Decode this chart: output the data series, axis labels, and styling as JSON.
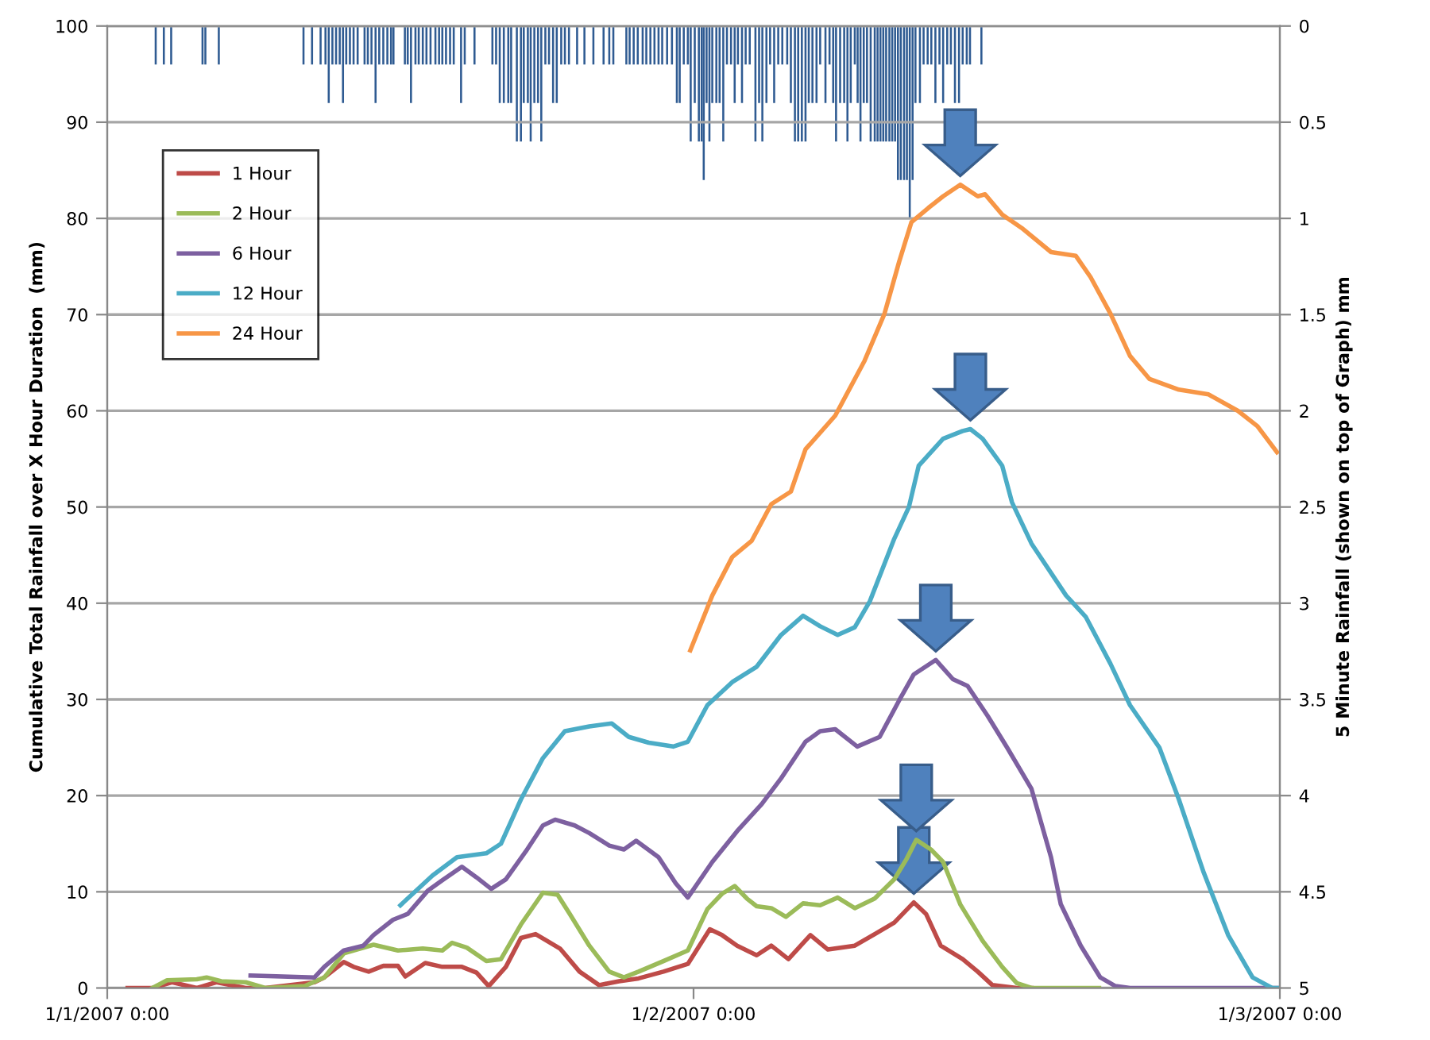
{
  "chart_data": {
    "type": "line",
    "ylabel": "Cumulative Total Rainfall over X Hour Duration  (mm)",
    "y2label": "5 Minute Rainfall (shown on top of Graph) mm",
    "xlim": [
      "2007-01-01T00:00",
      "2007-01-03T00:00"
    ],
    "xticks": [
      {
        "value": "2007-01-01T00:00",
        "label": "1/1/2007 0:00"
      },
      {
        "value": "2007-01-02T00:00",
        "label": "1/2/2007 0:00"
      },
      {
        "value": "2007-01-03T00:00",
        "label": "1/3/2007 0:00"
      }
    ],
    "ylim": [
      0,
      100
    ],
    "yticks": [
      0,
      10,
      20,
      30,
      40,
      50,
      60,
      70,
      80,
      90,
      100
    ],
    "y2lim": [
      5,
      0
    ],
    "y2ticks": [
      0,
      0.5,
      1,
      1.5,
      2,
      2.5,
      3,
      3.5,
      4,
      4.5,
      5
    ],
    "grid": "y",
    "legend": "top left",
    "marker": "none",
    "line_style": "solid",
    "series": [
      {
        "type": "bar",
        "axis": "y2",
        "color": "#2f5b92",
        "x": [
          "2007-01-01T01:59",
          "2007-01-01T02:19",
          "2007-01-01T02:37",
          "2007-01-01T03:54",
          "2007-01-01T04:01",
          "2007-01-01T04:34",
          "2007-01-01T08:02",
          "2007-01-01T08:23",
          "2007-01-01T08:44",
          "2007-01-01T08:56",
          "2007-01-01T09:04",
          "2007-01-01T09:13",
          "2007-01-01T09:22",
          "2007-01-01T09:31",
          "2007-01-01T09:39",
          "2007-01-01T09:47",
          "2007-01-01T09:56",
          "2007-01-01T10:05",
          "2007-01-01T10:15",
          "2007-01-01T10:32",
          "2007-01-01T10:40",
          "2007-01-01T10:49",
          "2007-01-01T10:59",
          "2007-01-01T11:08",
          "2007-01-01T11:18",
          "2007-01-01T11:28",
          "2007-01-01T11:37",
          "2007-01-01T11:43",
          "2007-01-01T12:11",
          "2007-01-01T12:18",
          "2007-01-01T12:26",
          "2007-01-01T12:37",
          "2007-01-01T12:45",
          "2007-01-01T12:55",
          "2007-01-01T13:04",
          "2007-01-01T13:14",
          "2007-01-01T13:26",
          "2007-01-01T13:35",
          "2007-01-01T13:43",
          "2007-01-01T13:52",
          "2007-01-01T14:02",
          "2007-01-01T14:11",
          "2007-01-01T14:29",
          "2007-01-01T14:38",
          "2007-01-01T15:02",
          "2007-01-01T15:46",
          "2007-01-01T15:55",
          "2007-01-01T16:04",
          "2007-01-01T16:14",
          "2007-01-01T16:25",
          "2007-01-01T16:32",
          "2007-01-01T16:46",
          "2007-01-01T16:56",
          "2007-01-01T17:03",
          "2007-01-01T17:13",
          "2007-01-01T17:20",
          "2007-01-01T17:29",
          "2007-01-01T17:38",
          "2007-01-01T17:46",
          "2007-01-01T17:56",
          "2007-01-01T18:05",
          "2007-01-01T18:15",
          "2007-01-01T18:24",
          "2007-01-01T18:35",
          "2007-01-01T18:44",
          "2007-01-01T18:54",
          "2007-01-01T19:14",
          "2007-01-01T19:32",
          "2007-01-01T19:54",
          "2007-01-01T20:19",
          "2007-01-01T20:33",
          "2007-01-01T20:43",
          "2007-01-01T21:15",
          "2007-01-01T21:23",
          "2007-01-01T21:33",
          "2007-01-01T21:43",
          "2007-01-01T21:55",
          "2007-01-01T22:04",
          "2007-01-01T22:14",
          "2007-01-01T22:24",
          "2007-01-01T22:34",
          "2007-01-01T22:43",
          "2007-01-01T22:55",
          "2007-01-01T23:07",
          "2007-01-01T23:19",
          "2007-01-01T23:26",
          "2007-01-01T23:36",
          "2007-01-01T23:46",
          "2007-01-01T23:53",
          "2007-01-02T00:03",
          "2007-01-02T00:13",
          "2007-01-02T00:20",
          "2007-01-02T00:25",
          "2007-01-02T00:32",
          "2007-01-02T00:39",
          "2007-01-02T00:46",
          "2007-01-02T00:56",
          "2007-01-02T01:04",
          "2007-01-02T01:13",
          "2007-01-02T01:22",
          "2007-01-02T01:32",
          "2007-01-02T01:41",
          "2007-01-02T01:49",
          "2007-01-02T01:59",
          "2007-01-02T02:08",
          "2007-01-02T02:18",
          "2007-01-02T02:32",
          "2007-01-02T02:41",
          "2007-01-02T02:49",
          "2007-01-02T02:59",
          "2007-01-02T03:08",
          "2007-01-02T03:18",
          "2007-01-02T03:28",
          "2007-01-02T03:38",
          "2007-01-02T03:50",
          "2007-01-02T03:59",
          "2007-01-02T04:09",
          "2007-01-02T04:17",
          "2007-01-02T04:26",
          "2007-01-02T04:35",
          "2007-01-02T04:43",
          "2007-01-02T04:52",
          "2007-01-02T05:02",
          "2007-01-02T05:11",
          "2007-01-02T05:24",
          "2007-01-02T05:34",
          "2007-01-02T05:43",
          "2007-01-02T05:50",
          "2007-01-02T06:00",
          "2007-01-02T06:10",
          "2007-01-02T06:18",
          "2007-01-02T06:26",
          "2007-01-02T06:36",
          "2007-01-02T06:43",
          "2007-01-02T06:50",
          "2007-01-02T06:58",
          "2007-01-02T07:06",
          "2007-01-02T07:15",
          "2007-01-02T07:25",
          "2007-01-02T07:32",
          "2007-01-02T07:39",
          "2007-01-02T07:46",
          "2007-01-02T07:53",
          "2007-01-02T08:01",
          "2007-01-02T08:08",
          "2007-01-02T08:15",
          "2007-01-02T08:22",
          "2007-01-02T08:29",
          "2007-01-02T08:37",
          "2007-01-02T08:44",
          "2007-01-02T08:51",
          "2007-01-02T08:58",
          "2007-01-02T09:05",
          "2007-01-02T09:16",
          "2007-01-02T09:25",
          "2007-01-02T09:35",
          "2007-01-02T09:44",
          "2007-01-02T09:54",
          "2007-01-02T10:04",
          "2007-01-02T10:13",
          "2007-01-02T10:23",
          "2007-01-02T10:32",
          "2007-01-02T10:42",
          "2007-01-02T10:52",
          "2007-01-02T11:01",
          "2007-01-02T11:11",
          "2007-01-02T11:19",
          "2007-01-02T11:47"
        ],
        "values": [
          0.2,
          0.2,
          0.2,
          0.2,
          0.2,
          0.2,
          0.2,
          0.2,
          0.2,
          0.2,
          0.4,
          0.2,
          0.2,
          0.2,
          0.4,
          0.2,
          0.2,
          0.2,
          0.2,
          0.2,
          0.2,
          0.2,
          0.4,
          0.2,
          0.2,
          0.2,
          0.2,
          0.2,
          0.2,
          0.2,
          0.4,
          0.2,
          0.2,
          0.2,
          0.2,
          0.2,
          0.2,
          0.2,
          0.2,
          0.2,
          0.2,
          0.2,
          0.4,
          0.2,
          0.2,
          0.2,
          0.2,
          0.4,
          0.4,
          0.4,
          0.4,
          0.6,
          0.6,
          0.4,
          0.4,
          0.6,
          0.4,
          0.4,
          0.6,
          0.2,
          0.2,
          0.4,
          0.4,
          0.2,
          0.2,
          0.2,
          0.2,
          0.2,
          0.2,
          0.2,
          0.2,
          0.2,
          0.2,
          0.2,
          0.2,
          0.2,
          0.2,
          0.2,
          0.2,
          0.2,
          0.2,
          0.2,
          0.2,
          0.2,
          0.4,
          0.4,
          0.2,
          0.2,
          0.6,
          0.4,
          0.6,
          0.6,
          0.8,
          0.4,
          0.6,
          0.4,
          0.4,
          0.4,
          0.6,
          0.2,
          0.2,
          0.4,
          0.2,
          0.4,
          0.2,
          0.2,
          0.6,
          0.4,
          0.6,
          0.4,
          0.2,
          0.4,
          0.2,
          0.2,
          0.2,
          0.4,
          0.6,
          0.6,
          0.6,
          0.6,
          0.4,
          0.4,
          0.4,
          0.2,
          0.4,
          0.2,
          0.4,
          0.6,
          0.4,
          0.4,
          0.6,
          0.4,
          0.2,
          0.4,
          0.6,
          0.4,
          0.4,
          0.6,
          0.6,
          0.6,
          0.6,
          0.6,
          0.6,
          0.6,
          0.6,
          0.6,
          0.8,
          0.8,
          0.8,
          0.8,
          1.0,
          0.8,
          0.4,
          0.4,
          0.2,
          0.2,
          0.2,
          0.4,
          0.2,
          0.4,
          0.2,
          0.2,
          0.4,
          0.4,
          0.2,
          0.2,
          0.2,
          0.2
        ]
      },
      {
        "name": "1 Hour",
        "color": "#be4b48",
        "x": [
          "2007-01-01T00:50",
          "2007-01-01T01:51",
          "2007-01-01T02:39",
          "2007-01-01T03:40",
          "2007-01-01T04:28",
          "2007-01-01T05:40",
          "2007-01-01T06:28",
          "2007-01-01T08:29",
          "2007-01-01T08:53",
          "2007-01-01T09:41",
          "2007-01-01T10:05",
          "2007-01-01T10:42",
          "2007-01-01T11:18",
          "2007-01-01T11:54",
          "2007-01-01T12:12",
          "2007-01-01T13:01",
          "2007-01-01T13:43",
          "2007-01-01T14:31",
          "2007-01-01T15:07",
          "2007-01-01T15:37",
          "2007-01-01T16:19",
          "2007-01-01T16:56",
          "2007-01-01T17:32",
          "2007-01-01T17:56",
          "2007-01-01T18:32",
          "2007-01-01T19:20",
          "2007-01-01T20:08",
          "2007-01-01T20:57",
          "2007-01-01T21:45",
          "2007-01-01T22:46",
          "2007-01-01T23:46",
          "2007-01-02T00:40",
          "2007-01-02T01:10",
          "2007-01-02T01:47",
          "2007-01-02T02:35",
          "2007-01-02T03:11",
          "2007-01-02T03:53",
          "2007-01-02T04:47",
          "2007-01-02T05:30",
          "2007-01-02T06:36",
          "2007-01-02T07:25",
          "2007-01-02T08:13",
          "2007-01-02T09:01",
          "2007-01-02T09:31",
          "2007-01-02T10:07",
          "2007-01-02T11:01",
          "2007-01-02T11:38",
          "2007-01-02T12:14",
          "2007-01-02T13:14",
          "2007-01-02T13:50"
        ],
        "values": [
          0,
          0,
          0.6,
          0,
          0.6,
          0,
          0,
          0.6,
          1.1,
          2.7,
          2.2,
          1.7,
          2.3,
          2.3,
          1.2,
          2.6,
          2.2,
          2.2,
          1.6,
          0.2,
          2.2,
          5.2,
          5.6,
          5.0,
          4.1,
          1.7,
          0.3,
          0.7,
          1.0,
          1.7,
          2.5,
          6.1,
          5.5,
          4.4,
          3.4,
          4.4,
          3.0,
          5.5,
          4.0,
          4.4,
          5.6,
          6.8,
          8.9,
          7.7,
          4.4,
          3.0,
          1.7,
          0.3,
          0,
          0
        ]
      },
      {
        "name": "2 Hour",
        "color": "#9bbb59",
        "x": [
          "2007-01-01T01:51",
          "2007-01-01T02:27",
          "2007-01-01T03:40",
          "2007-01-01T04:04",
          "2007-01-01T04:40",
          "2007-01-01T05:40",
          "2007-01-01T06:28",
          "2007-01-01T08:05",
          "2007-01-01T08:53",
          "2007-01-01T09:41",
          "2007-01-01T10:54",
          "2007-01-01T11:54",
          "2007-01-01T12:55",
          "2007-01-01T13:43",
          "2007-01-01T14:07",
          "2007-01-01T14:43",
          "2007-01-01T15:31",
          "2007-01-01T16:07",
          "2007-01-01T16:56",
          "2007-01-01T17:50",
          "2007-01-01T18:26",
          "2007-01-01T18:56",
          "2007-01-01T19:44",
          "2007-01-01T20:33",
          "2007-01-01T21:09",
          "2007-01-01T21:45",
          "2007-01-01T22:46",
          "2007-01-01T23:46",
          "2007-01-02T00:34",
          "2007-01-02T01:10",
          "2007-01-02T01:41",
          "2007-01-02T02:11",
          "2007-01-02T02:35",
          "2007-01-02T03:11",
          "2007-01-02T03:47",
          "2007-01-02T04:29",
          "2007-01-02T05:11",
          "2007-01-02T05:54",
          "2007-01-02T06:36",
          "2007-01-02T07:25",
          "2007-01-02T08:13",
          "2007-01-02T08:43",
          "2007-01-02T09:07",
          "2007-01-02T09:43",
          "2007-01-02T10:13",
          "2007-01-02T10:55",
          "2007-01-02T11:50",
          "2007-01-02T12:38",
          "2007-01-02T13:14",
          "2007-01-02T13:50",
          "2007-01-02T16:36"
        ],
        "values": [
          0,
          0.8,
          0.9,
          1.1,
          0.7,
          0.6,
          0,
          0.2,
          1.1,
          3.6,
          4.5,
          3.9,
          4.1,
          3.9,
          4.7,
          4.2,
          2.8,
          3.0,
          6.6,
          9.9,
          9.7,
          7.7,
          4.4,
          1.7,
          1.1,
          1.7,
          2.8,
          3.9,
          8.2,
          9.8,
          10.6,
          9.3,
          8.5,
          8.3,
          7.4,
          8.8,
          8.6,
          9.4,
          8.3,
          9.3,
          11.3,
          13.4,
          15.4,
          14.4,
          13.1,
          8.7,
          4.9,
          2.2,
          0.5,
          0,
          0
        ]
      },
      {
        "name": "6 Hour",
        "color": "#7d60a0",
        "x": [
          "2007-01-01T05:52",
          "2007-01-01T08:29",
          "2007-01-01T08:53",
          "2007-01-01T09:41",
          "2007-01-01T10:29",
          "2007-01-01T10:54",
          "2007-01-01T11:42",
          "2007-01-01T12:18",
          "2007-01-01T13:07",
          "2007-01-01T13:43",
          "2007-01-01T14:31",
          "2007-01-01T15:07",
          "2007-01-01T15:43",
          "2007-01-01T16:19",
          "2007-01-01T17:08",
          "2007-01-01T17:50",
          "2007-01-01T18:20",
          "2007-01-01T19:08",
          "2007-01-01T19:44",
          "2007-01-01T20:33",
          "2007-01-01T21:09",
          "2007-01-01T21:39",
          "2007-01-01T22:34",
          "2007-01-01T23:16",
          "2007-01-01T23:46",
          "2007-01-02T00:46",
          "2007-01-02T01:47",
          "2007-01-02T02:47",
          "2007-01-02T03:35",
          "2007-01-02T04:35",
          "2007-01-02T05:11",
          "2007-01-02T05:48",
          "2007-01-02T06:42",
          "2007-01-02T07:37",
          "2007-01-02T08:25",
          "2007-01-02T09:01",
          "2007-01-02T09:55",
          "2007-01-02T10:37",
          "2007-01-02T11:13",
          "2007-01-02T12:02",
          "2007-01-02T12:50",
          "2007-01-02T13:50",
          "2007-01-02T14:38",
          "2007-01-02T15:02",
          "2007-01-02T15:51",
          "2007-01-02T16:39",
          "2007-01-02T17:16",
          "2007-01-02T17:52",
          "2007-01-02T23:53"
        ],
        "values": [
          1.3,
          1.1,
          2.2,
          3.9,
          4.4,
          5.5,
          7.1,
          7.7,
          10.1,
          11.2,
          12.6,
          11.5,
          10.3,
          11.3,
          14.2,
          16.9,
          17.5,
          16.9,
          16.1,
          14.8,
          14.4,
          15.3,
          13.6,
          10.9,
          9.4,
          13.1,
          16.3,
          19.1,
          21.8,
          25.6,
          26.7,
          26.9,
          25.1,
          26.1,
          29.9,
          32.6,
          34.1,
          32.1,
          31.4,
          28.3,
          25.0,
          20.7,
          13.6,
          8.7,
          4.4,
          1.1,
          0.2,
          0,
          0
        ]
      },
      {
        "name": "12 Hour",
        "color": "#4bacc6",
        "x": [
          "2007-01-01T12:00",
          "2007-01-01T13:19",
          "2007-01-01T14:19",
          "2007-01-01T15:31",
          "2007-01-01T16:07",
          "2007-01-01T16:56",
          "2007-01-01T17:50",
          "2007-01-01T18:44",
          "2007-01-01T19:44",
          "2007-01-01T20:39",
          "2007-01-01T21:21",
          "2007-01-01T22:10",
          "2007-01-01T23:10",
          "2007-01-01T23:46",
          "2007-01-02T00:34",
          "2007-01-02T01:35",
          "2007-01-02T02:35",
          "2007-01-02T03:35",
          "2007-01-02T04:29",
          "2007-01-02T05:11",
          "2007-01-02T05:54",
          "2007-01-02T06:36",
          "2007-01-02T07:13",
          "2007-01-02T08:13",
          "2007-01-02T08:49",
          "2007-01-02T09:13",
          "2007-01-02T10:13",
          "2007-01-02T11:01",
          "2007-01-02T11:20",
          "2007-01-02T11:50",
          "2007-01-02T12:38",
          "2007-01-02T13:02",
          "2007-01-02T13:50",
          "2007-01-02T15:15",
          "2007-01-02T16:03",
          "2007-01-02T17:04",
          "2007-01-02T17:52",
          "2007-01-02T19:04",
          "2007-01-02T19:52",
          "2007-01-02T20:53",
          "2007-01-02T21:53",
          "2007-01-02T22:53",
          "2007-01-02T23:41",
          "2007-01-03T00:00"
        ],
        "values": [
          8.6,
          11.7,
          13.6,
          14.0,
          15.0,
          19.6,
          23.9,
          26.7,
          27.2,
          27.5,
          26.1,
          25.5,
          25.1,
          25.6,
          29.4,
          31.8,
          33.4,
          36.7,
          38.7,
          37.6,
          36.7,
          37.5,
          40.2,
          46.7,
          50.0,
          54.3,
          57.1,
          57.9,
          58.1,
          57.1,
          54.3,
          50.5,
          46.2,
          40.8,
          38.6,
          33.7,
          29.4,
          25.0,
          19.6,
          12.0,
          5.5,
          1.1,
          0,
          0
        ]
      },
      {
        "name": "24 Hour",
        "color": "#f79646",
        "x": [
          "2007-01-01T23:52",
          "2007-01-02T00:46",
          "2007-01-02T01:35",
          "2007-01-02T02:23",
          "2007-01-02T03:11",
          "2007-01-02T03:59",
          "2007-01-02T04:35",
          "2007-01-02T05:48",
          "2007-01-02T07:00",
          "2007-01-02T07:49",
          "2007-01-02T08:25",
          "2007-01-02T08:55",
          "2007-01-02T09:37",
          "2007-01-02T10:13",
          "2007-01-02T10:55",
          "2007-01-02T11:38",
          "2007-01-02T11:56",
          "2007-01-02T12:38",
          "2007-01-02T13:26",
          "2007-01-02T14:38",
          "2007-01-02T15:39",
          "2007-01-02T16:15",
          "2007-01-02T17:04",
          "2007-01-02T17:52",
          "2007-01-02T18:40",
          "2007-01-02T19:52",
          "2007-01-02T21:05",
          "2007-01-02T22:17",
          "2007-01-02T23:05",
          "2007-01-02T23:53"
        ],
        "values": [
          35.1,
          40.8,
          44.8,
          46.5,
          50.3,
          51.6,
          56.0,
          59.5,
          65.2,
          70.1,
          75.5,
          79.6,
          81.1,
          82.3,
          83.5,
          82.3,
          82.5,
          80.4,
          79.0,
          76.5,
          76.1,
          73.9,
          70.1,
          65.7,
          63.3,
          62.2,
          61.7,
          60.0,
          58.4,
          55.7
        ]
      }
    ]
  }
}
